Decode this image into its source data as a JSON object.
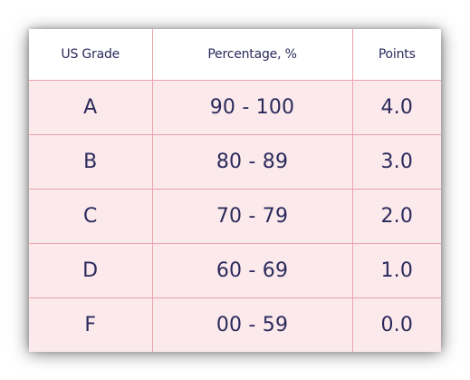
{
  "table": {
    "headers": [
      "US Grade",
      "Percentage, %",
      "Points"
    ],
    "rows": [
      [
        "A",
        "90 - 100",
        "4.0"
      ],
      [
        "B",
        "80 - 89",
        "3.0"
      ],
      [
        "C",
        "70 - 79",
        "2.0"
      ],
      [
        "D",
        "60 - 69",
        "1.0"
      ],
      [
        "F",
        "00 - 59",
        "0.0"
      ]
    ]
  },
  "colors": {
    "text": "#2b2a5c",
    "row_background": "#fbe9eb",
    "header_background": "#ffffff",
    "border": "#eaa3ac"
  }
}
